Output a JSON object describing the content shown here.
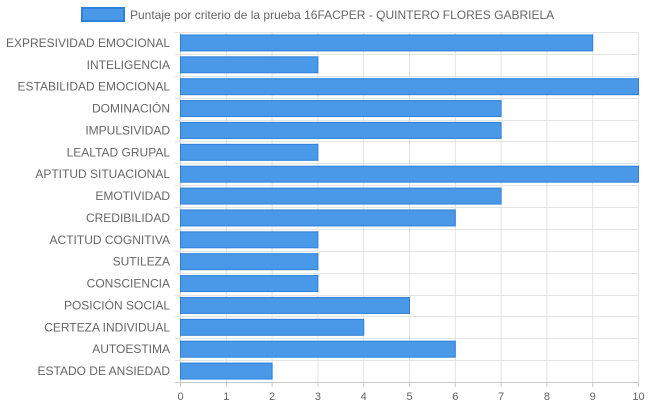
{
  "colors": {
    "bar_fill": "#4a98e8",
    "bar_stroke": "#2f80d9",
    "grid": "#e3e3e3",
    "axis": "#c8c8c8",
    "text": "#666666"
  },
  "chart_data": {
    "type": "bar",
    "orientation": "horizontal",
    "series": [
      {
        "name": "Puntaje por criterio de la prueba 16FACPER - QUINTERO FLORES GABRIELA",
        "values": [
          9,
          3,
          10,
          7,
          7,
          3,
          10,
          7,
          6,
          3,
          3,
          3,
          5,
          4,
          6,
          2
        ]
      }
    ],
    "categories": [
      "EXPRESIVIDAD EMOCIONAL",
      "INTELIGENCIA",
      "ESTABILIDAD EMOCIONAL",
      "DOMINACIÓN",
      "IMPULSIVIDAD",
      "LEALTAD GRUPAL",
      "APTITUD SITUACIONAL",
      "EMOTIVIDAD",
      "CREDIBILIDAD",
      "ACTITUD COGNITIVA",
      "SUTILEZA",
      "CONSCIENCIA",
      "POSICIÓN SOCIAL",
      "CERTEZA INDIVIDUAL",
      "AUTOESTIMA",
      "ESTADO DE ANSIEDAD"
    ],
    "xlim": [
      0,
      10
    ],
    "xticks": [
      "0",
      "1",
      "2",
      "3",
      "4",
      "5",
      "6",
      "7",
      "8",
      "9",
      "10"
    ],
    "grid": true,
    "legend_position": "top-center"
  }
}
